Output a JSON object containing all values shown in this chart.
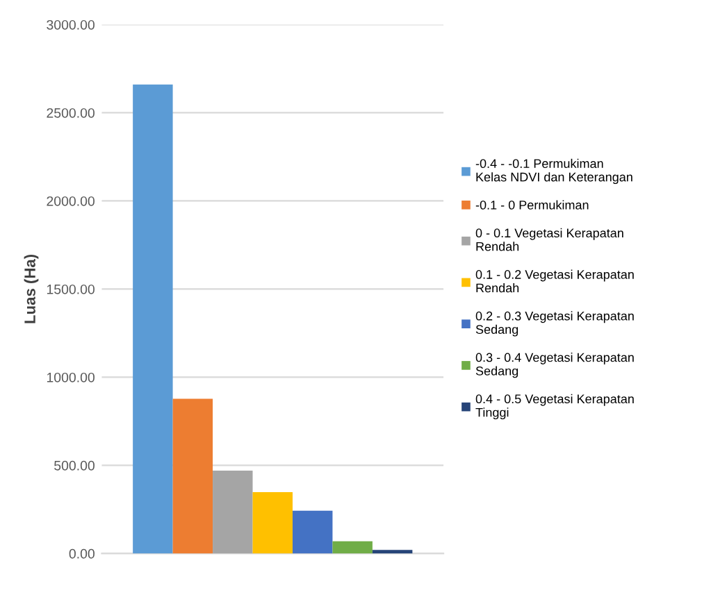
{
  "chart_data": {
    "type": "bar",
    "ylabel": "Luas (Ha)",
    "categories": [
      null
    ],
    "series": [
      {
        "name": "-0.4 - -0.1 Permukiman\nKelas NDVI dan Keterangan",
        "color": "#5b9bd5",
        "values": [
          2660
        ]
      },
      {
        "name": "-0.1 - 0 Permukiman",
        "color": "#ed7d31",
        "values": [
          878
        ]
      },
      {
        "name": "0 - 0.1 Vegetasi Kerapatan\nRendah",
        "color": "#a5a5a5",
        "values": [
          470
        ]
      },
      {
        "name": "0.1 - 0.2 Vegetasi Kerapatan\nRendah",
        "color": "#ffc000",
        "values": [
          348
        ]
      },
      {
        "name": "0.2 - 0.3 Vegetasi Kerapatan\nSedang",
        "color": "#4472c4",
        "values": [
          243
        ]
      },
      {
        "name": "0.3 - 0.4 Vegetasi Kerapatan\nSedang",
        "color": "#70ad47",
        "values": [
          69
        ]
      },
      {
        "name": "0.4 - 0.5 Vegetasi Kerapatan\nTinggi",
        "color": "#264478",
        "values": [
          20
        ]
      }
    ],
    "ylim": [
      0,
      3000
    ],
    "yticks": [
      {
        "value": 0,
        "label": "0.00"
      },
      {
        "value": 500,
        "label": "500.00"
      },
      {
        "value": 1000,
        "label": "1000.00"
      },
      {
        "value": 1500,
        "label": "1500.00"
      },
      {
        "value": 2000,
        "label": "2000.00"
      },
      {
        "value": 2500,
        "label": "2500.00"
      },
      {
        "value": 3000,
        "label": "3000.00"
      }
    ],
    "grid": "y",
    "legend": "right"
  }
}
